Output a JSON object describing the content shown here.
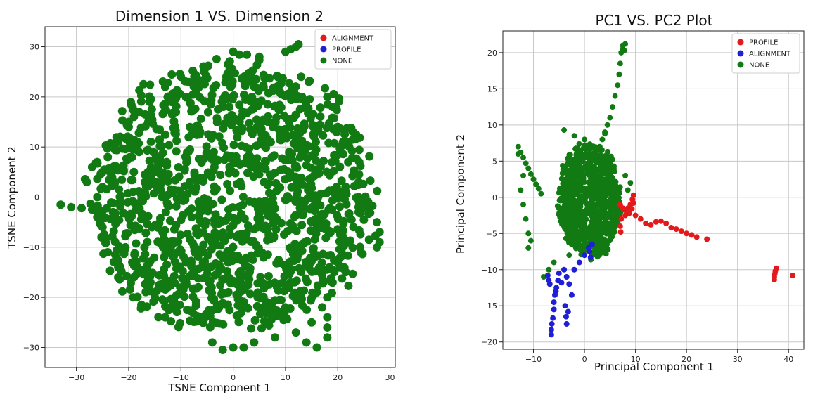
{
  "chart_data": [
    {
      "type": "scatter",
      "title": "Dimension 1 VS. Dimension 2",
      "xlabel": "TSNE Component 1",
      "ylabel": "TSNE Component 2",
      "xlim": [
        -36,
        31
      ],
      "ylim": [
        -34,
        34
      ],
      "xticks": [
        -30,
        -20,
        -10,
        0,
        10,
        20,
        30
      ],
      "yticks": [
        -30,
        -20,
        -10,
        0,
        10,
        20,
        30
      ],
      "grid": true,
      "legend_position": "top-right",
      "legend": [
        {
          "name": "ALIGNMENT",
          "color": "#e31a1c"
        },
        {
          "name": "PROFILE",
          "color": "#1f1fd6"
        },
        {
          "name": "NONE",
          "color": "#127a12"
        }
      ],
      "series": [
        {
          "name": "NONE",
          "color": "#127a12",
          "marker_radius": 6,
          "cloud": {
            "center": [
              0,
              0
            ],
            "radius": 29
          }
        },
        {
          "name": "NONE",
          "color": "#127a12",
          "marker_radius": 6,
          "points": [
            [
              -33,
              -1.5
            ],
            [
              -31,
              -2
            ],
            [
              -29,
              -2.2
            ],
            [
              -27,
              -2.5
            ],
            [
              -25,
              -2.8
            ],
            [
              -23,
              -3
            ],
            [
              -21,
              -3.2
            ],
            [
              24,
              -2
            ],
            [
              26,
              -3
            ],
            [
              27.5,
              -5
            ],
            [
              28,
              -7
            ],
            [
              28,
              -9
            ],
            [
              27.5,
              -10
            ],
            [
              12,
              30
            ],
            [
              12.5,
              30.5
            ],
            [
              11,
              29.5
            ],
            [
              10,
              29
            ],
            [
              5,
              28
            ],
            [
              0,
              29
            ],
            [
              -20,
              14
            ],
            [
              -22,
              11
            ],
            [
              -24,
              8
            ],
            [
              -25,
              5
            ],
            [
              -25,
              2
            ],
            [
              -26,
              0
            ],
            [
              -26,
              -4
            ],
            [
              -25,
              -6
            ],
            [
              -24,
              -11
            ],
            [
              -22,
              -14
            ],
            [
              -19,
              -16
            ],
            [
              -15,
              -20
            ],
            [
              -13,
              -24
            ],
            [
              0,
              -30
            ],
            [
              4,
              -29
            ],
            [
              8,
              -28
            ],
            [
              12,
              -27
            ],
            [
              15,
              -25
            ],
            [
              17,
              -22
            ],
            [
              18,
              -20
            ],
            [
              19,
              -17
            ],
            [
              20,
              -13
            ],
            [
              22,
              -9
            ],
            [
              23,
              -6
            ],
            [
              24,
              -3
            ],
            [
              24,
              0
            ],
            [
              24,
              3
            ],
            [
              22,
              7
            ],
            [
              21,
              11
            ],
            [
              20,
              14
            ],
            [
              19,
              18
            ],
            [
              18,
              20
            ],
            [
              -5,
              26
            ],
            [
              -10,
              24
            ],
            [
              -13,
              22
            ],
            [
              -16,
              19
            ],
            [
              -18,
              17
            ],
            [
              -19,
              16
            ],
            [
              -20,
              15
            ],
            [
              -18,
              9
            ],
            [
              -26,
              7
            ],
            [
              -27,
              6
            ],
            [
              -28,
              3
            ],
            [
              10,
              -22
            ],
            [
              13,
              -20
            ],
            [
              16,
              -19
            ],
            [
              18,
              -24
            ],
            [
              18,
              -26
            ],
            [
              18,
              -28
            ],
            [
              16,
              -30
            ],
            [
              14,
              -29
            ],
            [
              2,
              -30
            ],
            [
              -2,
              -30.5
            ],
            [
              -4,
              -29
            ]
          ]
        }
      ]
    },
    {
      "type": "scatter",
      "title": "PC1 VS. PC2 Plot",
      "xlabel": "Principal Component 1",
      "ylabel": "Principal Component 2",
      "xlim": [
        -16,
        43
      ],
      "ylim": [
        -21,
        23
      ],
      "xticks": [
        -10,
        0,
        10,
        20,
        30,
        40
      ],
      "yticks": [
        -20,
        -15,
        -10,
        -5,
        0,
        5,
        10,
        15,
        20
      ],
      "grid": true,
      "legend_position": "top-right",
      "legend": [
        {
          "name": "PROFILE",
          "color": "#e31a1c"
        },
        {
          "name": "ALIGNMENT",
          "color": "#1f1fd6"
        },
        {
          "name": "NONE",
          "color": "#127a12"
        }
      ],
      "series": [
        {
          "name": "NONE",
          "color": "#127a12",
          "marker_radius": 4,
          "cloud": {
            "center": [
              1,
              -0.5
            ],
            "radius_x": 6.5,
            "radius_y": 8.5
          }
        },
        {
          "name": "NONE",
          "color": "#127a12",
          "marker_radius": 4,
          "points": [
            [
              -13,
              7
            ],
            [
              -12.5,
              6.2
            ],
            [
              -12,
              5.5
            ],
            [
              -11.5,
              4.7
            ],
            [
              -11,
              4
            ],
            [
              -10.5,
              3.2
            ],
            [
              -10,
              2.5
            ],
            [
              -9.5,
              1.8
            ],
            [
              -9,
              1.2
            ],
            [
              -8.5,
              0.5
            ],
            [
              -12.5,
              1
            ],
            [
              -12,
              -1
            ],
            [
              -11.5,
              -3
            ],
            [
              -11,
              -5
            ],
            [
              -11,
              -7
            ],
            [
              -10.5,
              -6
            ],
            [
              -13,
              6
            ],
            [
              -12,
              3
            ],
            [
              3,
              7
            ],
            [
              3.5,
              8
            ],
            [
              4,
              9
            ],
            [
              4.5,
              10
            ],
            [
              5,
              11
            ],
            [
              5.5,
              12.5
            ],
            [
              6,
              14
            ],
            [
              6.5,
              15.5
            ],
            [
              6.8,
              17
            ],
            [
              7,
              18.5
            ],
            [
              7.2,
              20
            ],
            [
              7.5,
              21
            ],
            [
              7.5,
              20.5
            ],
            [
              7.8,
              20.3
            ],
            [
              8,
              21.2
            ],
            [
              8,
              3
            ],
            [
              8.5,
              1
            ],
            [
              9,
              2
            ],
            [
              7,
              -3
            ],
            [
              5,
              -5
            ],
            [
              3,
              -6
            ],
            [
              1,
              -6.5
            ],
            [
              -1,
              -7
            ],
            [
              -3,
              -8
            ],
            [
              -6,
              -9
            ],
            [
              -7,
              -10
            ],
            [
              -8,
              -11
            ],
            [
              -2,
              8.5
            ],
            [
              0,
              8
            ],
            [
              4,
              8.8
            ],
            [
              -4,
              9.3
            ]
          ]
        },
        {
          "name": "PROFILE",
          "color": "#e31a1c",
          "marker_radius": 4,
          "points": [
            [
              7,
              -1
            ],
            [
              7.5,
              -1.5
            ],
            [
              8,
              -1.8
            ],
            [
              8.5,
              -1.5
            ],
            [
              9,
              -1
            ],
            [
              9.4,
              -0.3
            ],
            [
              9.6,
              0.3
            ],
            [
              9.6,
              -0.8
            ],
            [
              9.3,
              -1.6
            ],
            [
              8.8,
              -2.2
            ],
            [
              8,
              -2.5
            ],
            [
              7.2,
              -3
            ],
            [
              7,
              -4
            ],
            [
              7.1,
              -4.8
            ],
            [
              10,
              -2.5
            ],
            [
              11,
              -3
            ],
            [
              12,
              -3.6
            ],
            [
              13,
              -3.8
            ],
            [
              14,
              -3.4
            ],
            [
              15,
              -3.3
            ],
            [
              16,
              -3.6
            ],
            [
              17,
              -4.2
            ],
            [
              18,
              -4.4
            ],
            [
              19,
              -4.7
            ],
            [
              20,
              -5
            ],
            [
              21,
              -5.2
            ],
            [
              22,
              -5.5
            ],
            [
              24,
              -5.8
            ],
            [
              37.2,
              -11
            ],
            [
              37.3,
              -10.6
            ],
            [
              37.4,
              -10.2
            ],
            [
              37.6,
              -9.8
            ],
            [
              37.2,
              -11.4
            ],
            [
              40.8,
              -10.8
            ]
          ]
        },
        {
          "name": "ALIGNMENT",
          "color": "#1f1fd6",
          "marker_radius": 4,
          "points": [
            [
              -6.5,
              -19
            ],
            [
              -6.5,
              -18.3
            ],
            [
              -6.4,
              -17.5
            ],
            [
              -6.2,
              -16.7
            ],
            [
              -6,
              -15.5
            ],
            [
              -6,
              -14.5
            ],
            [
              -5.8,
              -13.5
            ],
            [
              -5.5,
              -12.5
            ],
            [
              -5.2,
              -11.5
            ],
            [
              -5,
              -10.5
            ],
            [
              -4.5,
              -11.8
            ],
            [
              -4,
              -10
            ],
            [
              -3.5,
              -11
            ],
            [
              -3,
              -12
            ],
            [
              -2.5,
              -13.5
            ],
            [
              -3.8,
              -15
            ],
            [
              -3.6,
              -16.5
            ],
            [
              -3.5,
              -17.5
            ],
            [
              -3.2,
              -15.8
            ],
            [
              -7,
              -11.5
            ],
            [
              -7.2,
              -10.8
            ],
            [
              -6.8,
              -12
            ],
            [
              -5.6,
              -13
            ],
            [
              -2,
              -10
            ],
            [
              -1,
              -9
            ],
            [
              0,
              -8
            ],
            [
              0.8,
              -7
            ],
            [
              1,
              -7.5
            ],
            [
              1.2,
              -8.3
            ],
            [
              1.5,
              -6.5
            ]
          ]
        }
      ]
    }
  ]
}
